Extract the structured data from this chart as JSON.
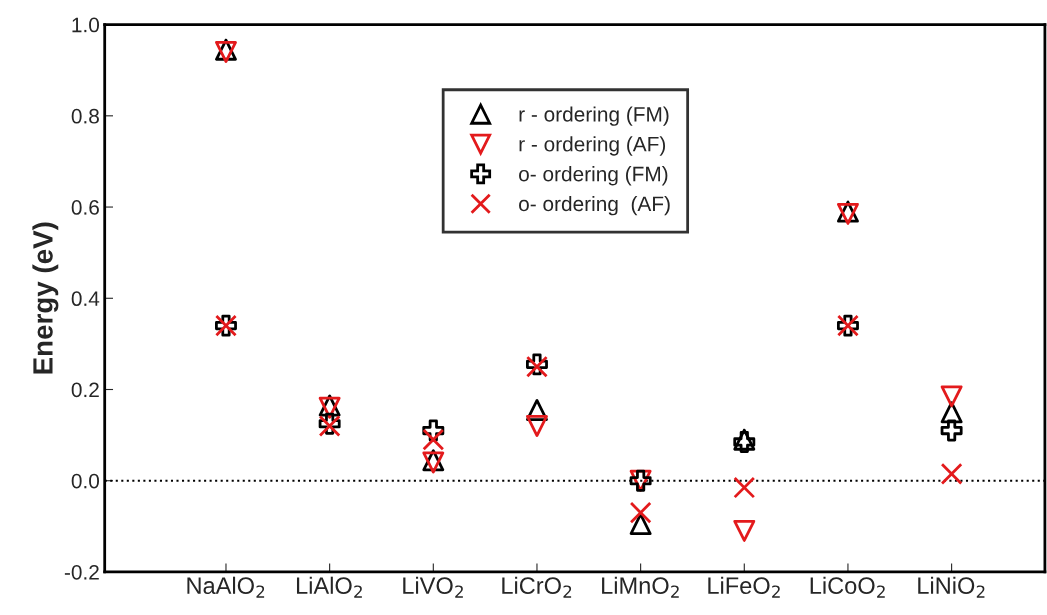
{
  "chart_data": {
    "type": "scatter",
    "ylabel": "Energy (eV)",
    "categories": [
      "NaAlO$_{2}$",
      "LiAlO$_{2}$",
      "LiVO$_{2}$",
      "LiCrO$_{2}$",
      "LiMnO$_{2}$",
      "LiFeO$_{2}$",
      "LiCoO$_{2}$",
      "LiNiO$_{2}$"
    ],
    "series": [
      {
        "name": "r - ordering (FM)",
        "color": "#000000",
        "marker": "triangle",
        "values": [
          0.945,
          0.165,
          0.045,
          0.155,
          -0.095,
          0.09,
          0.59,
          0.15
        ]
      },
      {
        "name": "r - ordering (AF)",
        "color": "#e31a1c",
        "marker": "triangle_down",
        "values": [
          0.94,
          0.16,
          0.04,
          0.12,
          0.0,
          -0.11,
          0.585,
          0.185
        ]
      },
      {
        "name": "o- ordering (FM)",
        "color": "#000000",
        "marker": "plus",
        "values": [
          0.34,
          0.125,
          0.11,
          0.255,
          0.0,
          0.085,
          0.34,
          0.11
        ]
      },
      {
        "name": "o- ordering  (AF)",
        "color": "#e31a1c",
        "marker": "cross",
        "values": [
          0.34,
          0.12,
          0.09,
          0.25,
          -0.07,
          -0.015,
          0.34,
          0.015
        ]
      }
    ],
    "ylim": [
      -0.2,
      1.0
    ],
    "yticks": [
      -0.2,
      {
        "value": 0,
        "label": "0.0"
      },
      0.2,
      0.4,
      0.6,
      0.8,
      {
        "value": 1,
        "label": "1.0"
      }
    ],
    "ref_lines": [
      {
        "axis": "y",
        "value": 0,
        "color": "#000000",
        "line_style": "dotted"
      }
    ],
    "grid": false,
    "legend": "top"
  }
}
